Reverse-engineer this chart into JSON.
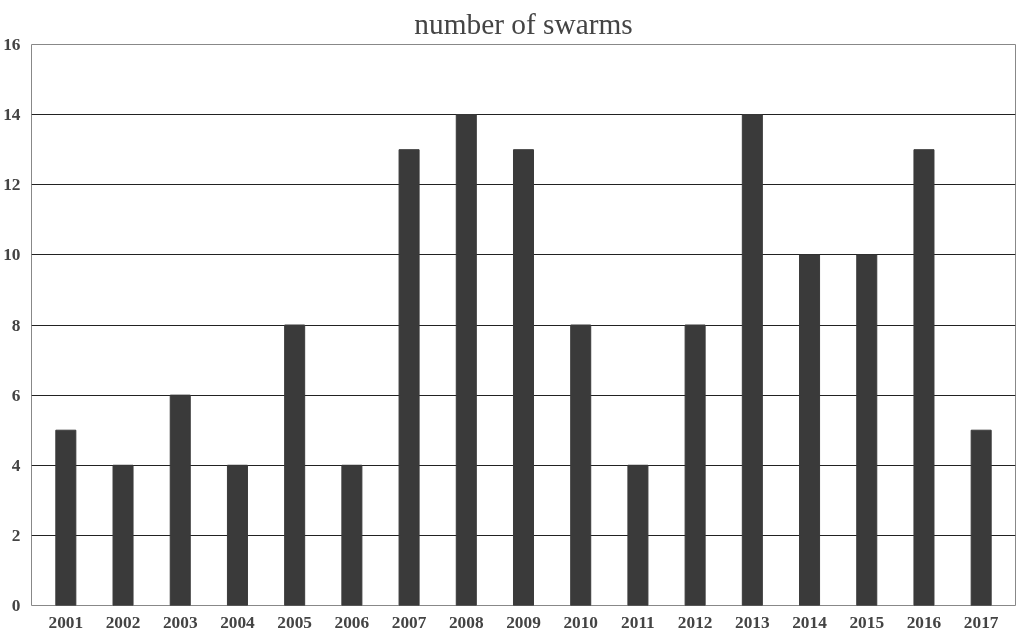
{
  "chart_data": {
    "type": "bar",
    "title": "number of swarms",
    "categories": [
      "2001",
      "2002",
      "2003",
      "2004",
      "2005",
      "2006",
      "2007",
      "2008",
      "2009",
      "2010",
      "2011",
      "2012",
      "2013",
      "2014",
      "2015",
      "2016",
      "2017"
    ],
    "values": [
      5,
      4,
      6,
      4,
      8,
      4,
      13,
      14,
      13,
      8,
      4,
      8,
      14,
      10,
      10,
      13,
      5
    ],
    "color": "#3a3a3a",
    "ylim": [
      0,
      16
    ],
    "yticks": [
      0,
      2,
      4,
      6,
      8,
      10,
      12,
      14,
      16
    ],
    "grid": "y"
  }
}
